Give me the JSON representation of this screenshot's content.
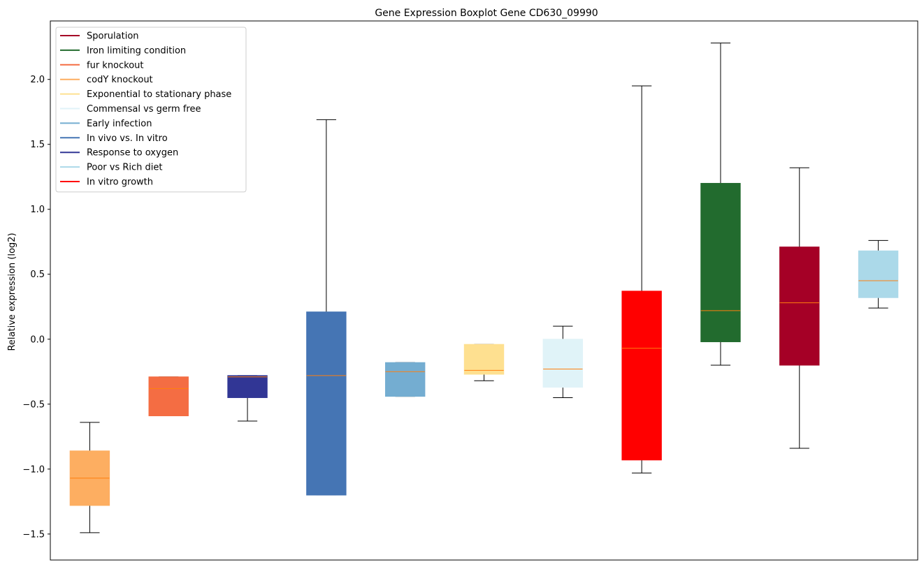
{
  "chart_data": {
    "type": "boxplot",
    "title": "Gene Expression Boxplot Gene CD630_09990",
    "xlabel": "",
    "ylabel": "Relative expression (log2)",
    "ylim": [
      -1.7,
      2.45
    ],
    "yticks": [
      -1.5,
      -1.0,
      -0.5,
      0.0,
      0.5,
      1.0,
      1.5,
      2.0
    ],
    "ytick_labels": [
      "−1.5",
      "−1.0",
      "−0.5",
      "0.0",
      "0.5",
      "1.0",
      "1.5",
      "2.0"
    ],
    "grid": false,
    "legend_position": "top-left",
    "median_color": "#ff7f0e",
    "legend": [
      {
        "label": "Sporulation",
        "color": "#a50026"
      },
      {
        "label": "Iron limiting condition",
        "color": "#226b2e"
      },
      {
        "label": "fur knockout",
        "color": "#f46d43"
      },
      {
        "label": "codY knockout",
        "color": "#fdae61"
      },
      {
        "label": "Exponential to stationary phase",
        "color": "#fee090"
      },
      {
        "label": "Commensal vs germ free",
        "color": "#e0f3f8"
      },
      {
        "label": "Early infection",
        "color": "#74add1"
      },
      {
        "label": "In vivo vs. In vitro",
        "color": "#4575b4"
      },
      {
        "label": "Response to oxygen",
        "color": "#313695"
      },
      {
        "label": "Poor vs Rich diet",
        "color": "#abd9e9"
      },
      {
        "label": "In vitro growth",
        "color": "#ff0000"
      }
    ],
    "boxes": [
      {
        "name": "codY knockout",
        "color": "#fdae61",
        "whislo": -1.49,
        "q1": -1.28,
        "med": -1.07,
        "q3": -0.86,
        "whishi": -0.64
      },
      {
        "name": "fur knockout",
        "color": "#f46d43",
        "whislo": -0.59,
        "q1": -0.59,
        "med": -0.38,
        "q3": -0.29,
        "whishi": -0.29
      },
      {
        "name": "Response to oxygen",
        "color": "#313695",
        "whislo": -0.63,
        "q1": -0.45,
        "med": -0.29,
        "q3": -0.28,
        "whishi": -0.28
      },
      {
        "name": "In vivo vs. In vitro",
        "color": "#4575b4",
        "whislo": -1.2,
        "q1": -1.2,
        "med": -0.28,
        "q3": 0.21,
        "whishi": 1.69
      },
      {
        "name": "Early infection",
        "color": "#74add1",
        "whislo": -0.44,
        "q1": -0.44,
        "med": -0.25,
        "q3": -0.18,
        "whishi": -0.18
      },
      {
        "name": "Exponential to stationary phase",
        "color": "#fee090",
        "whislo": -0.32,
        "q1": -0.27,
        "med": -0.24,
        "q3": -0.04,
        "whishi": -0.04
      },
      {
        "name": "Commensal vs germ free",
        "color": "#e0f3f8",
        "whislo": -0.45,
        "q1": -0.37,
        "med": -0.23,
        "q3": 0.0,
        "whishi": 0.1
      },
      {
        "name": "In vitro growth",
        "color": "#ff0000",
        "whislo": -1.03,
        "q1": -0.93,
        "med": -0.07,
        "q3": 0.37,
        "whishi": 1.95
      },
      {
        "name": "Iron limiting condition",
        "color": "#226b2e",
        "whislo": -0.2,
        "q1": -0.02,
        "med": 0.22,
        "q3": 1.2,
        "whishi": 2.28
      },
      {
        "name": "Sporulation",
        "color": "#a50026",
        "whislo": -0.84,
        "q1": -0.2,
        "med": 0.28,
        "q3": 0.71,
        "whishi": 1.32
      },
      {
        "name": "Poor vs Rich diet",
        "color": "#abd9e9",
        "whislo": 0.24,
        "q1": 0.32,
        "med": 0.45,
        "q3": 0.68,
        "whishi": 0.76
      }
    ]
  }
}
